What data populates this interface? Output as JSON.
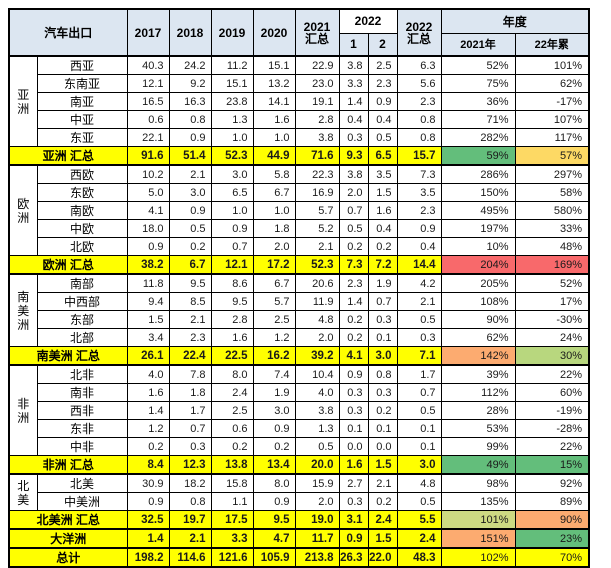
{
  "chart_data": {
    "type": "table",
    "title": "汽车出口",
    "header": {
      "corner": "汽车出口",
      "years": [
        "2017",
        "2018",
        "2019",
        "2020"
      ],
      "y2021_top": "2021",
      "y2021_bottom": "汇总",
      "y2022_group": "2022",
      "month_cols": [
        "1",
        "2"
      ],
      "y2022_total_top": "2022",
      "y2022_total_bottom": "汇总",
      "annual_group": "年度",
      "annual_cols": [
        "2021年",
        "22年累"
      ]
    },
    "colors": {
      "header_bg": "#dce6f1",
      "summary_bg": "#ffff00",
      "scale_green": "#63be7b",
      "scale_light_green": "#b8d77e",
      "scale_olive": "#cdda82",
      "scale_yellow": "#fdd964",
      "scale_orange": "#fcab70",
      "scale_red": "#f8696b"
    },
    "sections": [
      {
        "region": "亚洲",
        "rows": [
          {
            "label": "西亚",
            "values": [
              "40.3",
              "24.2",
              "11.2",
              "15.1",
              "22.9",
              "3.8",
              "2.5",
              "6.3"
            ],
            "pct": [
              "52%",
              "101%"
            ]
          },
          {
            "label": "东南亚",
            "values": [
              "12.1",
              "9.2",
              "15.1",
              "13.2",
              "23.0",
              "3.3",
              "2.3",
              "5.6"
            ],
            "pct": [
              "75%",
              "62%"
            ]
          },
          {
            "label": "南亚",
            "values": [
              "16.5",
              "16.3",
              "23.8",
              "14.1",
              "19.1",
              "1.4",
              "0.9",
              "2.3"
            ],
            "pct": [
              "36%",
              "-17%"
            ]
          },
          {
            "label": "中亚",
            "values": [
              "0.6",
              "0.8",
              "1.3",
              "1.6",
              "2.8",
              "0.4",
              "0.4",
              "0.8"
            ],
            "pct": [
              "71%",
              "107%"
            ]
          },
          {
            "label": "东亚",
            "values": [
              "22.1",
              "0.9",
              "1.0",
              "1.0",
              "3.8",
              "0.3",
              "0.5",
              "0.8"
            ],
            "pct": [
              "282%",
              "117%"
            ]
          }
        ],
        "summary": {
          "label": "亚洲 汇总",
          "values": [
            "91.6",
            "51.4",
            "52.3",
            "44.9",
            "71.6",
            "9.3",
            "6.5",
            "15.7"
          ],
          "pct": [
            "59%",
            "57%"
          ],
          "pct_bg": [
            "#63be7b",
            "#fdd964"
          ]
        }
      },
      {
        "region": "欧洲",
        "rows": [
          {
            "label": "西欧",
            "values": [
              "10.2",
              "2.1",
              "3.0",
              "5.8",
              "22.3",
              "3.8",
              "3.5",
              "7.3"
            ],
            "pct": [
              "286%",
              "297%"
            ]
          },
          {
            "label": "东欧",
            "values": [
              "5.0",
              "3.0",
              "6.5",
              "6.7",
              "16.9",
              "2.0",
              "1.5",
              "3.5"
            ],
            "pct": [
              "150%",
              "58%"
            ]
          },
          {
            "label": "南欧",
            "values": [
              "4.1",
              "0.9",
              "1.0",
              "1.0",
              "5.7",
              "0.7",
              "1.6",
              "2.3"
            ],
            "pct": [
              "495%",
              "580%"
            ]
          },
          {
            "label": "中欧",
            "values": [
              "18.0",
              "0.5",
              "0.9",
              "1.8",
              "5.2",
              "0.5",
              "0.4",
              "0.9"
            ],
            "pct": [
              "197%",
              "33%"
            ]
          },
          {
            "label": "北欧",
            "values": [
              "0.9",
              "0.2",
              "0.7",
              "2.0",
              "2.1",
              "0.2",
              "0.2",
              "0.4"
            ],
            "pct": [
              "10%",
              "48%"
            ]
          }
        ],
        "summary": {
          "label": "欧洲 汇总",
          "values": [
            "38.2",
            "6.7",
            "12.1",
            "17.2",
            "52.3",
            "7.3",
            "7.2",
            "14.4"
          ],
          "pct": [
            "204%",
            "169%"
          ],
          "pct_bg": [
            "#f8696b",
            "#f8696b"
          ]
        }
      },
      {
        "region": "南美洲",
        "rows": [
          {
            "label": "南部",
            "values": [
              "11.8",
              "9.5",
              "8.6",
              "6.7",
              "20.6",
              "2.3",
              "1.9",
              "4.2"
            ],
            "pct": [
              "205%",
              "52%"
            ]
          },
          {
            "label": "中西部",
            "values": [
              "9.4",
              "8.5",
              "9.5",
              "5.7",
              "11.9",
              "1.4",
              "0.7",
              "2.1"
            ],
            "pct": [
              "108%",
              "17%"
            ]
          },
          {
            "label": "东部",
            "values": [
              "1.5",
              "2.1",
              "2.8",
              "2.5",
              "4.8",
              "0.2",
              "0.3",
              "0.5"
            ],
            "pct": [
              "90%",
              "-30%"
            ]
          },
          {
            "label": "北部",
            "values": [
              "3.4",
              "2.3",
              "1.6",
              "1.2",
              "2.0",
              "0.2",
              "0.1",
              "0.3"
            ],
            "pct": [
              "62%",
              "24%"
            ]
          }
        ],
        "summary": {
          "label": "南美洲 汇总",
          "values": [
            "26.1",
            "22.4",
            "22.5",
            "16.2",
            "39.2",
            "4.1",
            "3.0",
            "7.1"
          ],
          "pct": [
            "142%",
            "30%"
          ],
          "pct_bg": [
            "#fcab70",
            "#b8d77e"
          ]
        }
      },
      {
        "region": "非洲",
        "rows": [
          {
            "label": "北非",
            "values": [
              "4.0",
              "7.8",
              "8.0",
              "7.4",
              "10.4",
              "0.9",
              "0.8",
              "1.7"
            ],
            "pct": [
              "39%",
              "22%"
            ]
          },
          {
            "label": "南非",
            "values": [
              "1.6",
              "1.8",
              "2.4",
              "1.9",
              "4.0",
              "0.3",
              "0.3",
              "0.7"
            ],
            "pct": [
              "112%",
              "60%"
            ]
          },
          {
            "label": "西非",
            "values": [
              "1.4",
              "1.7",
              "2.5",
              "3.0",
              "3.8",
              "0.3",
              "0.2",
              "0.5"
            ],
            "pct": [
              "28%",
              "-19%"
            ]
          },
          {
            "label": "东非",
            "values": [
              "1.2",
              "0.7",
              "0.6",
              "0.9",
              "1.3",
              "0.1",
              "0.1",
              "0.1"
            ],
            "pct": [
              "53%",
              "-28%"
            ]
          },
          {
            "label": "中非",
            "values": [
              "0.2",
              "0.3",
              "0.2",
              "0.2",
              "0.5",
              "0.0",
              "0.0",
              "0.1"
            ],
            "pct": [
              "99%",
              "22%"
            ]
          }
        ],
        "summary": {
          "label": "非洲 汇总",
          "values": [
            "8.4",
            "12.3",
            "13.8",
            "13.4",
            "20.0",
            "1.6",
            "1.5",
            "3.0"
          ],
          "pct": [
            "49%",
            "15%"
          ],
          "pct_bg": [
            "#63be7b",
            "#63be7b"
          ]
        }
      },
      {
        "region": "北美",
        "rows": [
          {
            "label": "北美",
            "values": [
              "30.9",
              "18.2",
              "15.8",
              "8.0",
              "15.9",
              "2.7",
              "2.1",
              "4.8"
            ],
            "pct": [
              "98%",
              "92%"
            ]
          },
          {
            "label": "中美洲",
            "values": [
              "0.9",
              "0.8",
              "1.1",
              "0.9",
              "2.0",
              "0.3",
              "0.2",
              "0.5"
            ],
            "pct": [
              "135%",
              "89%"
            ]
          }
        ],
        "summary": {
          "label": "北美洲 汇总",
          "values": [
            "32.5",
            "19.7",
            "17.5",
            "9.5",
            "19.0",
            "3.1",
            "2.4",
            "5.5"
          ],
          "pct": [
            "101%",
            "90%"
          ],
          "pct_bg": [
            "#cdda82",
            "#fcab70"
          ]
        }
      }
    ],
    "footer_rows": [
      {
        "label": "大洋洲",
        "values": [
          "1.4",
          "2.1",
          "3.3",
          "4.7",
          "11.7",
          "0.9",
          "1.5",
          "2.4"
        ],
        "pct": [
          "151%",
          "23%"
        ],
        "pct_bg": [
          "#fcab70",
          "#63be7b"
        ]
      },
      {
        "label": "总计",
        "values": [
          "198.2",
          "114.6",
          "121.6",
          "105.9",
          "213.8",
          "26.3",
          "22.0",
          "48.3"
        ],
        "pct": [
          "102%",
          "70%"
        ],
        "pct_bg": [
          null,
          null
        ]
      }
    ]
  }
}
